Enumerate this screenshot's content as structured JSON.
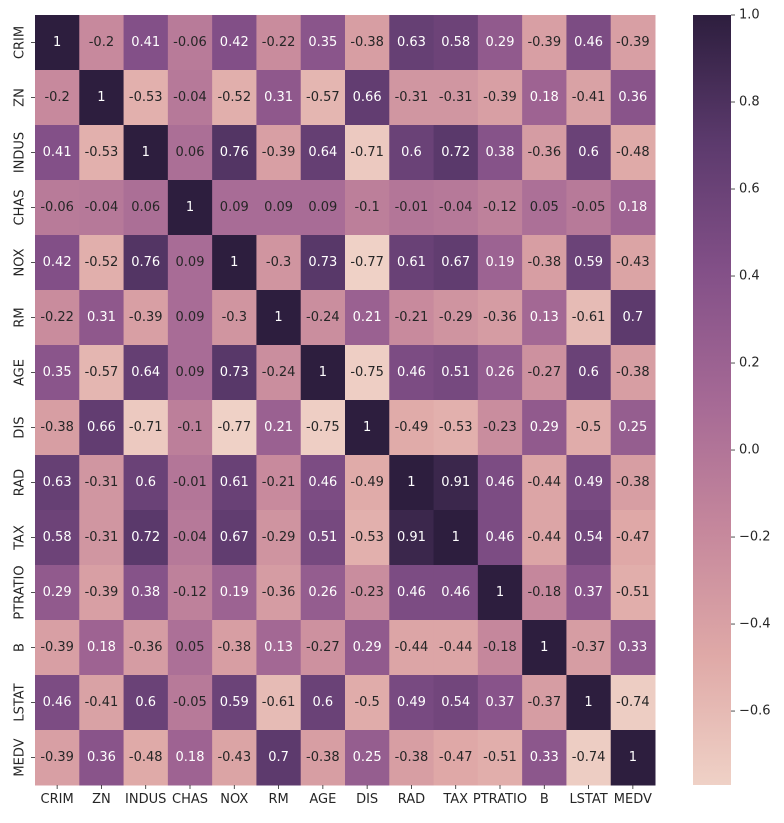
{
  "chart_data": {
    "type": "heatmap",
    "title": "",
    "xlabel": "",
    "ylabel": "",
    "x_labels": [
      "CRIM",
      "ZN",
      "INDUS",
      "CHAS",
      "NOX",
      "RM",
      "AGE",
      "DIS",
      "RAD",
      "TAX",
      "PTRATIO",
      "B",
      "LSTAT",
      "MEDV"
    ],
    "y_labels": [
      "CRIM",
      "ZN",
      "INDUS",
      "CHAS",
      "NOX",
      "RM",
      "AGE",
      "DIS",
      "RAD",
      "TAX",
      "PTRATIO",
      "B",
      "LSTAT",
      "MEDV"
    ],
    "values": [
      [
        1,
        -0.2,
        0.41,
        -0.06,
        0.42,
        -0.22,
        0.35,
        -0.38,
        0.63,
        0.58,
        0.29,
        -0.39,
        0.46,
        -0.39
      ],
      [
        -0.2,
        1,
        -0.53,
        -0.04,
        -0.52,
        0.31,
        -0.57,
        0.66,
        -0.31,
        -0.31,
        -0.39,
        0.18,
        -0.41,
        0.36
      ],
      [
        0.41,
        -0.53,
        1,
        0.06,
        0.76,
        -0.39,
        0.64,
        -0.71,
        0.6,
        0.72,
        0.38,
        -0.36,
        0.6,
        -0.48
      ],
      [
        -0.06,
        -0.04,
        0.06,
        1,
        0.09,
        0.09,
        0.09,
        -0.1,
        -0.01,
        -0.04,
        -0.12,
        0.05,
        -0.05,
        0.18
      ],
      [
        0.42,
        -0.52,
        0.76,
        0.09,
        1,
        -0.3,
        0.73,
        -0.77,
        0.61,
        0.67,
        0.19,
        -0.38,
        0.59,
        -0.43
      ],
      [
        -0.22,
        0.31,
        -0.39,
        0.09,
        -0.3,
        1,
        -0.24,
        0.21,
        -0.21,
        -0.29,
        -0.36,
        0.13,
        -0.61,
        0.7
      ],
      [
        0.35,
        -0.57,
        0.64,
        0.09,
        0.73,
        -0.24,
        1,
        -0.75,
        0.46,
        0.51,
        0.26,
        -0.27,
        0.6,
        -0.38
      ],
      [
        -0.38,
        0.66,
        -0.71,
        -0.1,
        -0.77,
        0.21,
        -0.75,
        1,
        -0.49,
        -0.53,
        -0.23,
        0.29,
        -0.5,
        0.25
      ],
      [
        0.63,
        -0.31,
        0.6,
        -0.01,
        0.61,
        -0.21,
        0.46,
        -0.49,
        1,
        0.91,
        0.46,
        -0.44,
        0.49,
        -0.38
      ],
      [
        0.58,
        -0.31,
        0.72,
        -0.04,
        0.67,
        -0.29,
        0.51,
        -0.53,
        0.91,
        1,
        0.46,
        -0.44,
        0.54,
        -0.47
      ],
      [
        0.29,
        -0.39,
        0.38,
        -0.12,
        0.19,
        -0.36,
        0.26,
        -0.23,
        0.46,
        0.46,
        1,
        -0.18,
        0.37,
        -0.51
      ],
      [
        -0.39,
        0.18,
        -0.36,
        0.05,
        -0.38,
        0.13,
        -0.27,
        0.29,
        -0.44,
        -0.44,
        -0.18,
        1,
        -0.37,
        0.33
      ],
      [
        0.46,
        -0.41,
        0.6,
        -0.05,
        0.59,
        -0.61,
        0.6,
        -0.5,
        0.49,
        0.54,
        0.37,
        -0.37,
        1,
        -0.74
      ],
      [
        -0.39,
        0.36,
        -0.48,
        0.18,
        -0.43,
        0.7,
        -0.38,
        0.25,
        -0.38,
        -0.47,
        -0.51,
        0.33,
        -0.74,
        1
      ]
    ],
    "value_range": [
      -0.77,
      1.0
    ],
    "colormap": {
      "low_color": "#efd1c6",
      "high_color": "#2d1e3e",
      "stops": [
        "#efd1c6",
        "#dfa9a7",
        "#c5879c",
        "#a56995",
        "#835088",
        "#5c3a6d",
        "#2d1e3e"
      ]
    },
    "colorbar": {
      "ticks": [
        -0.6,
        -0.4,
        -0.2,
        0.0,
        0.2,
        0.4,
        0.6,
        0.8,
        1.0
      ],
      "tick_labels": [
        "−0.6",
        "−0.4",
        "−0.2",
        "0.0",
        "0.2",
        "0.4",
        "0.6",
        "0.8",
        "1.0"
      ],
      "placement": "right"
    },
    "annotations": true,
    "annotation_light_text_color": "#ffffff",
    "annotation_dark_text_color": "#262626",
    "grid": false
  }
}
